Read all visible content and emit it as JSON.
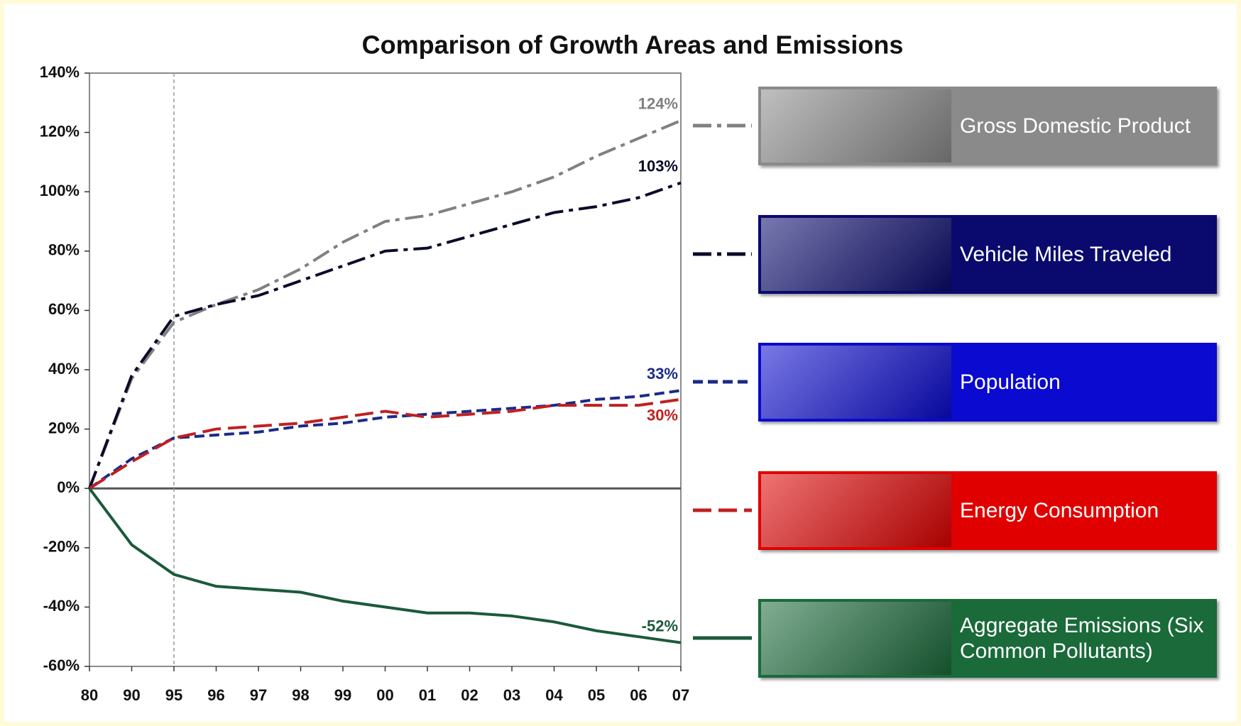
{
  "chart_data": {
    "type": "line",
    "title": "Comparison of Growth Areas and Emissions",
    "categories": [
      "80",
      "90",
      "95",
      "96",
      "97",
      "98",
      "99",
      "00",
      "01",
      "02",
      "03",
      "04",
      "05",
      "06",
      "07"
    ],
    "reference_line_at": "95",
    "ylim": [
      -60,
      140
    ],
    "yticks": [
      {
        "value": -60,
        "label": "-60%"
      },
      {
        "value": -40,
        "label": "-40%"
      },
      {
        "value": -20,
        "label": "-20%"
      },
      {
        "value": 0,
        "label": "0%"
      },
      {
        "value": 20,
        "label": "20%"
      },
      {
        "value": 40,
        "label": "40%"
      },
      {
        "value": 60,
        "label": "60%"
      },
      {
        "value": 80,
        "label": "80%"
      },
      {
        "value": 100,
        "label": "100%"
      },
      {
        "value": 120,
        "label": "120%"
      },
      {
        "value": 140,
        "label": "140%"
      }
    ],
    "series": [
      {
        "name": "Gross Domestic Product",
        "color": "#808080",
        "box_color": "#8a8a8a",
        "line_style": "dash-dot",
        "values": [
          0,
          37,
          56,
          62,
          67,
          74,
          83,
          90,
          92,
          96,
          100,
          105,
          112,
          118,
          124
        ],
        "value_labels": [
          null,
          null,
          null,
          null,
          null,
          null,
          null,
          null,
          null,
          null,
          null,
          null,
          null,
          null,
          "124%"
        ]
      },
      {
        "name": "Vehicle Miles Traveled",
        "color": "#0a0a2a",
        "box_color": "#0a0a6e",
        "line_style": "dash-dot",
        "values": [
          0,
          38,
          58,
          62,
          65,
          70,
          75,
          80,
          81,
          85,
          89,
          93,
          95,
          98,
          103
        ],
        "value_labels": [
          null,
          null,
          null,
          null,
          null,
          null,
          null,
          null,
          null,
          null,
          null,
          null,
          null,
          null,
          "103%"
        ]
      },
      {
        "name": "Population",
        "color": "#1a2a8a",
        "box_color": "#0a0ad0",
        "line_style": "dash",
        "values": [
          0,
          10,
          17,
          18,
          19,
          21,
          22,
          24,
          25,
          26,
          27,
          28,
          30,
          31,
          33
        ],
        "value_labels": [
          null,
          null,
          null,
          null,
          null,
          null,
          null,
          null,
          null,
          null,
          null,
          null,
          null,
          null,
          "33%"
        ]
      },
      {
        "name": "Energy Consumption",
        "color": "#c02020",
        "box_color": "#e00000",
        "line_style": "long-dash",
        "label_side": "below",
        "values": [
          0,
          9,
          17,
          20,
          21,
          22,
          24,
          26,
          24,
          25,
          26,
          28,
          28,
          28,
          30
        ],
        "value_labels": [
          null,
          null,
          null,
          null,
          null,
          null,
          null,
          null,
          null,
          null,
          null,
          null,
          null,
          null,
          "30%"
        ]
      },
      {
        "name": "Aggregate Emissions (Six Common Pollutants)",
        "color": "#1a5a3a",
        "box_color": "#1a6a3a",
        "line_style": "solid",
        "values": [
          0,
          -19,
          -29,
          -33,
          -34,
          -35,
          -38,
          -40,
          -42,
          -42,
          -43,
          -45,
          -48,
          -50,
          -52
        ],
        "value_labels": [
          null,
          null,
          null,
          null,
          null,
          null,
          null,
          null,
          null,
          null,
          null,
          null,
          null,
          null,
          "-52%"
        ]
      }
    ]
  }
}
